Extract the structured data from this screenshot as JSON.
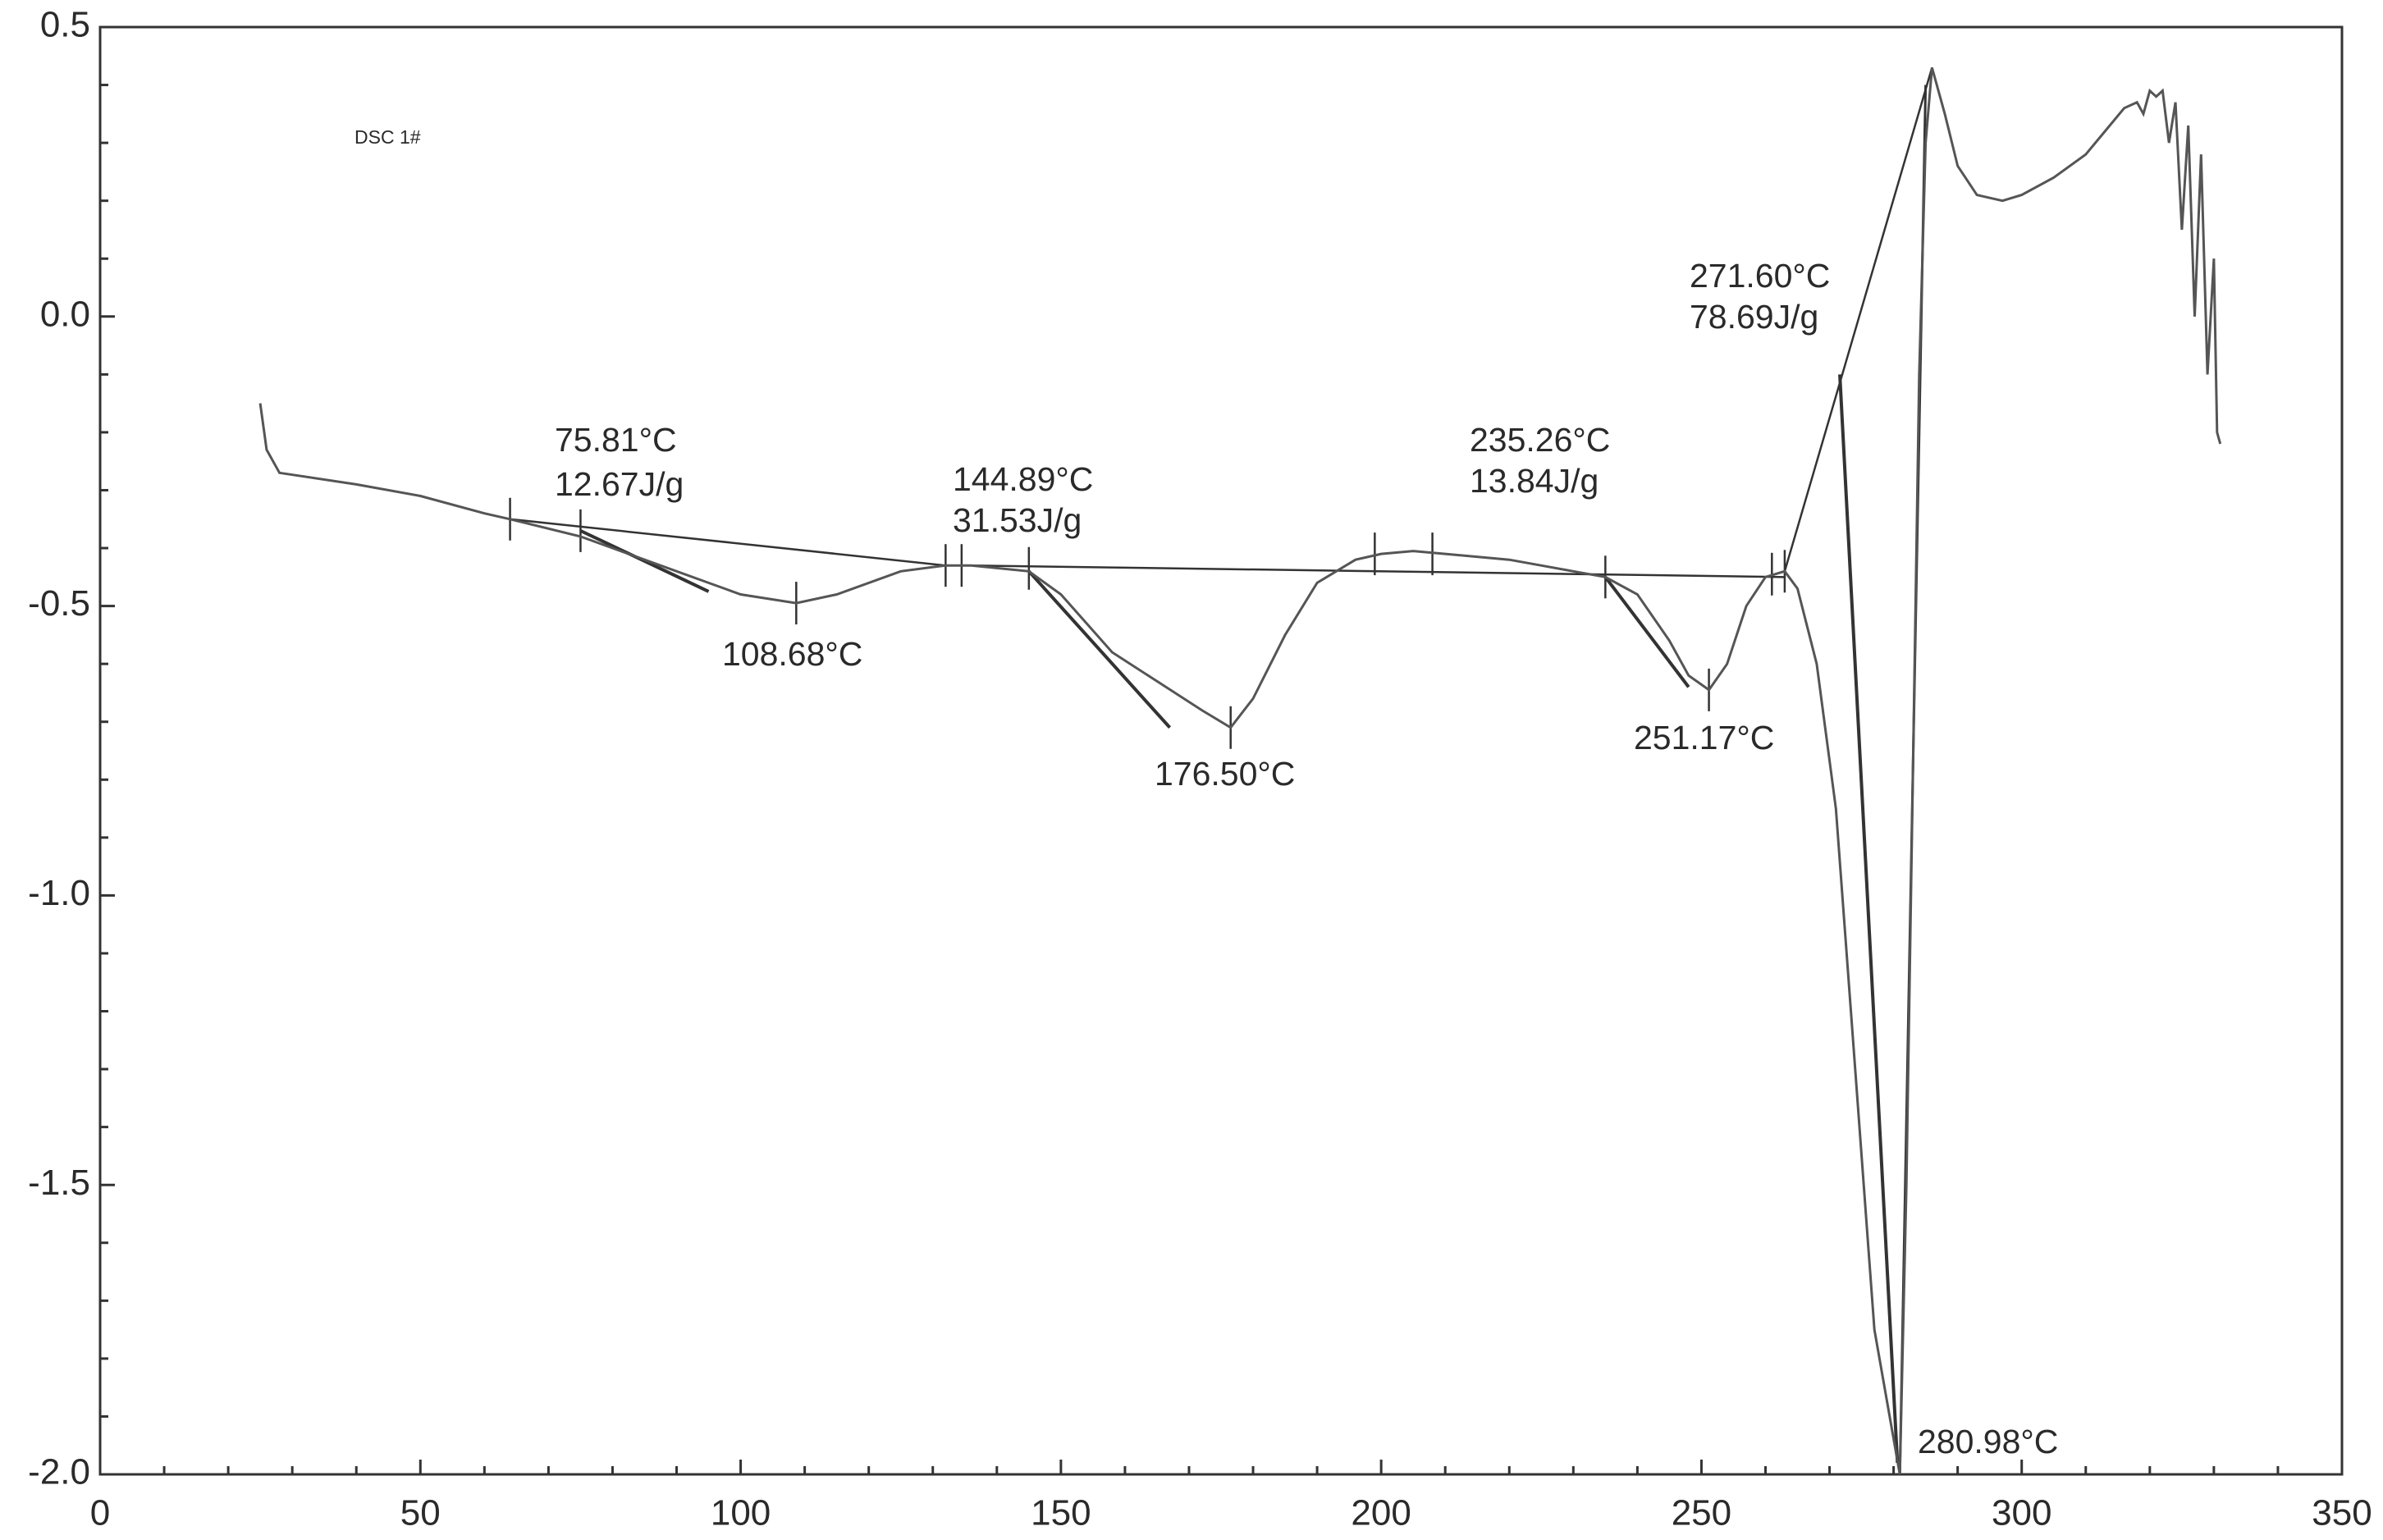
{
  "chart_data": {
    "type": "line",
    "title": "DSC 1#",
    "x": [
      25,
      26,
      28,
      40,
      50,
      60,
      64,
      75,
      85,
      95,
      100,
      108.68,
      115,
      125,
      132,
      136,
      145,
      150,
      158,
      165,
      172,
      176.5,
      180,
      185,
      190,
      196,
      200,
      205,
      210,
      220,
      230,
      235,
      240,
      245,
      248,
      251.17,
      254,
      257,
      260,
      263,
      265,
      268,
      271,
      274,
      277,
      280.98,
      282,
      283,
      284,
      285,
      286,
      288,
      290,
      293,
      297,
      300,
      305,
      310,
      313,
      316,
      318,
      319,
      320,
      321,
      322,
      323,
      324,
      325,
      326,
      327,
      328,
      329,
      330,
      330.5,
      331
    ],
    "values": [
      -0.15,
      -0.23,
      -0.27,
      -0.29,
      -0.31,
      -0.34,
      -0.35,
      -0.38,
      -0.42,
      -0.46,
      -0.48,
      -0.495,
      -0.48,
      -0.44,
      -0.43,
      -0.43,
      -0.44,
      -0.48,
      -0.58,
      -0.63,
      -0.68,
      -0.71,
      -0.66,
      -0.55,
      -0.46,
      -0.42,
      -0.41,
      -0.405,
      -0.41,
      -0.42,
      -0.44,
      -0.45,
      -0.48,
      -0.56,
      -0.62,
      -0.645,
      -0.6,
      -0.5,
      -0.45,
      -0.44,
      -0.47,
      -0.6,
      -0.85,
      -1.3,
      -1.75,
      -2.0,
      -1.5,
      -0.8,
      -0.1,
      0.3,
      0.43,
      0.35,
      0.26,
      0.21,
      0.2,
      0.21,
      0.24,
      0.28,
      0.32,
      0.36,
      0.37,
      0.35,
      0.39,
      0.38,
      0.39,
      0.3,
      0.37,
      0.15,
      0.33,
      0.0,
      0.28,
      -0.1,
      0.1,
      -0.2,
      -0.22
    ],
    "color": "#555555",
    "xlim": [
      0,
      350
    ],
    "xticks": [
      0,
      50,
      100,
      150,
      200,
      250,
      300,
      350
    ],
    "ylim": [
      -2.0,
      0.5
    ],
    "yticks": [
      {
        "value": -2.0,
        "label": "-2.0"
      },
      -1.5,
      {
        "value": -1.0,
        "label": "-1.0"
      },
      -0.5,
      {
        "value": 0.0,
        "label": "0.0"
      },
      0.5
    ],
    "annotations": [
      "75.81°C",
      "12.67J/g",
      "108.68°C",
      "144.89°C",
      "31.53J/g",
      "176.50°C",
      "235.26°C",
      "13.84J/g",
      "251.17°C",
      "271.60°C",
      "78.69J/g",
      "280.98°C"
    ]
  }
}
